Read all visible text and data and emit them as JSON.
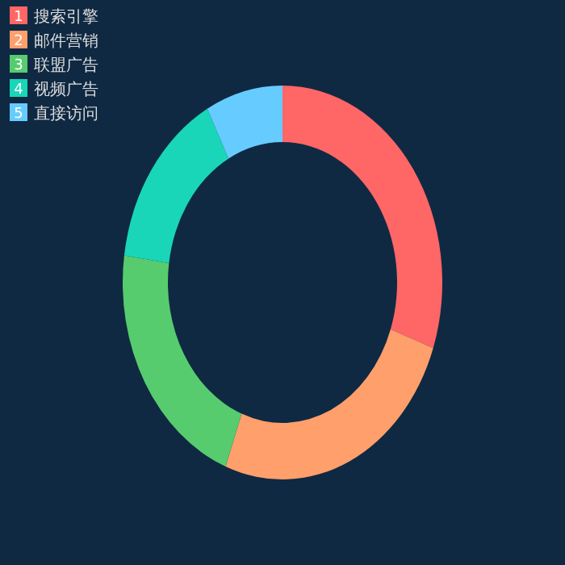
{
  "chart_data": {
    "type": "donut",
    "categories": [
      "搜索引擎",
      "邮件营销",
      "联盟广告",
      "视频广告",
      "直接访问"
    ],
    "values": [
      30.4,
      25.4,
      21.4,
      15.0,
      7.8
    ],
    "colors": [
      "#ff6666",
      "#ff9f6b",
      "#56cc6e",
      "#19d6b9",
      "#66ccff"
    ],
    "legend": "top left",
    "annotations": [
      "1",
      "2",
      "3",
      "4",
      "5"
    ]
  }
}
